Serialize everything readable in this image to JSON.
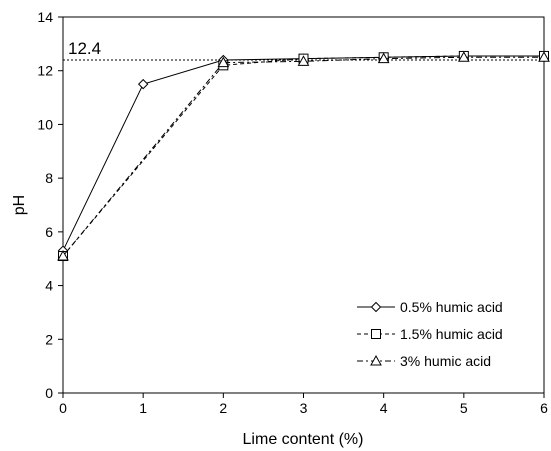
{
  "chart_data": {
    "type": "line",
    "title": "",
    "xlabel": "Lime content (%)",
    "ylabel": "pH",
    "xlim": [
      0,
      6
    ],
    "ylim": [
      0,
      14
    ],
    "xticks": [
      0,
      1,
      2,
      3,
      4,
      5,
      6
    ],
    "yticks": [
      0,
      2,
      4,
      6,
      8,
      10,
      12,
      14
    ],
    "grid": false,
    "legend_position": "bottom-right",
    "reference_line": {
      "y": 12.4,
      "label": "12.4",
      "style": "dotted"
    },
    "series": [
      {
        "name": "0.5% humic acid",
        "marker": "diamond",
        "line_style": "solid",
        "x": [
          0,
          1,
          2,
          3,
          4,
          5,
          6
        ],
        "y": [
          5.3,
          11.5,
          12.4,
          12.45,
          12.5,
          12.55,
          12.55
        ]
      },
      {
        "name": "1.5% humic acid",
        "marker": "square",
        "line_style": "dashed",
        "x": [
          0,
          2,
          3,
          4,
          5,
          6
        ],
        "y": [
          5.1,
          12.2,
          12.45,
          12.5,
          12.55,
          12.55
        ]
      },
      {
        "name": "3% humic acid",
        "marker": "triangle",
        "line_style": "dashdot",
        "x": [
          0,
          2,
          3,
          4,
          5,
          6
        ],
        "y": [
          5.1,
          12.3,
          12.35,
          12.45,
          12.5,
          12.5
        ]
      }
    ]
  }
}
